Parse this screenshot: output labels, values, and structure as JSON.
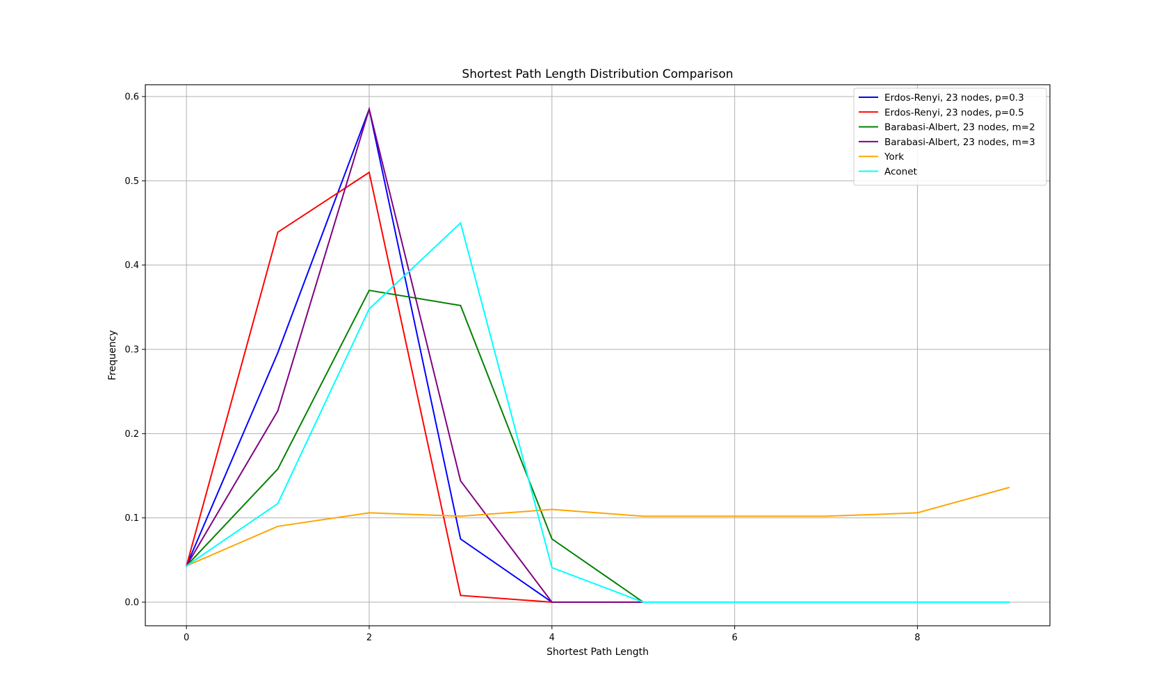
{
  "chart_data": {
    "type": "line",
    "title": "Shortest Path Length Distribution Comparison",
    "xlabel": "Shortest Path Length",
    "ylabel": "Frequency",
    "xlim": [
      -0.45,
      9.45
    ],
    "ylim": [
      -0.028,
      0.614
    ],
    "xticks": [
      0,
      2,
      4,
      6,
      8
    ],
    "yticks": [
      0.0,
      0.1,
      0.2,
      0.3,
      0.4,
      0.5,
      0.6
    ],
    "ytick_labels": [
      "0.0",
      "0.1",
      "0.2",
      "0.3",
      "0.4",
      "0.5",
      "0.6"
    ],
    "grid": true,
    "legend_position": "top-right",
    "x": [
      0,
      1,
      2,
      3,
      4,
      5,
      6,
      7,
      8,
      9
    ],
    "series": [
      {
        "name": "Erdos-Renyi, 23 nodes, p=0.3",
        "color": "#0000ff",
        "values": [
          0.043,
          0.296,
          0.585,
          0.075,
          0.0,
          0.0,
          0.0,
          0.0,
          0.0,
          0.0
        ]
      },
      {
        "name": "Erdos-Renyi, 23 nodes, p=0.5",
        "color": "#ff0000",
        "values": [
          0.043,
          0.439,
          0.51,
          0.008,
          0.0,
          0.0,
          0.0,
          0.0,
          0.0,
          0.0
        ]
      },
      {
        "name": "Barabasi-Albert, 23 nodes, m=2",
        "color": "#008000",
        "values": [
          0.043,
          0.158,
          0.37,
          0.352,
          0.075,
          0.0,
          0.0,
          0.0,
          0.0,
          0.0
        ]
      },
      {
        "name": "Barabasi-Albert, 23 nodes, m=3",
        "color": "#800080",
        "values": [
          0.043,
          0.227,
          0.585,
          0.144,
          0.0,
          0.0,
          0.0,
          0.0,
          0.0,
          0.0
        ]
      },
      {
        "name": "York",
        "color": "#ffa500",
        "values": [
          0.043,
          0.09,
          0.106,
          0.102,
          0.11,
          0.102,
          0.102,
          0.102,
          0.106,
          0.136
        ]
      },
      {
        "name": "Aconet",
        "color": "#00ffff",
        "values": [
          0.043,
          0.117,
          0.348,
          0.45,
          0.041,
          0.0,
          0.0,
          0.0,
          0.0,
          0.0
        ]
      }
    ]
  }
}
